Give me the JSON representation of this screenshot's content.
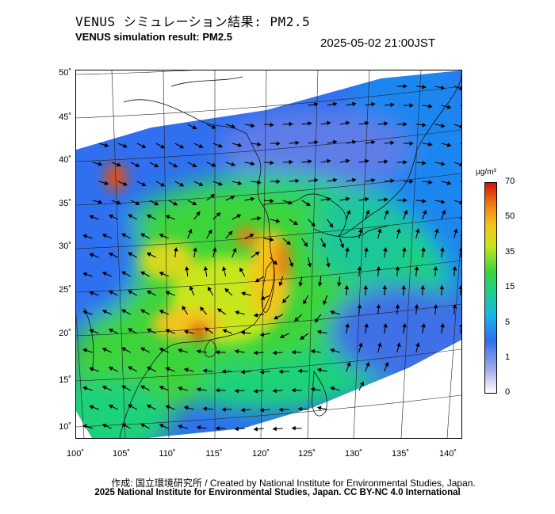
{
  "header": {
    "title_ja": "VENUS シミュレーション結果: PM2.5",
    "title_en": "VENUS simulation result: PM2.5",
    "timestamp": "2025-05-02 21:00JST"
  },
  "map": {
    "lat_labels": [
      "50˚",
      "45˚",
      "40˚",
      "35˚",
      "30˚",
      "25˚",
      "20˚",
      "15˚",
      "10˚"
    ],
    "lon_labels": [
      "100˚",
      "105˚",
      "110˚",
      "115˚",
      "120˚",
      "125˚",
      "130˚",
      "135˚",
      "140˚"
    ],
    "region": "East Asia",
    "field": "PM2.5 concentration with wind vectors"
  },
  "colorbar": {
    "unit": "µg/m³",
    "ticks": [
      "70",
      "50",
      "35",
      "15",
      "5",
      "1",
      "0"
    ],
    "colors": [
      "#d61010",
      "#f07a10",
      "#f4c51a",
      "#c8e61c",
      "#3ed43a",
      "#1fd27a",
      "#18b6e8",
      "#2f6ff0",
      "#9aa6e8",
      "#ffffff"
    ]
  },
  "footer": {
    "credit": "作成: 国立環境研究所 / Created by National Institute for Environmental Studies, Japan.",
    "license": "2025 National Institute for Environmental Studies, Japan. CC BY-NC 4.0 International"
  }
}
